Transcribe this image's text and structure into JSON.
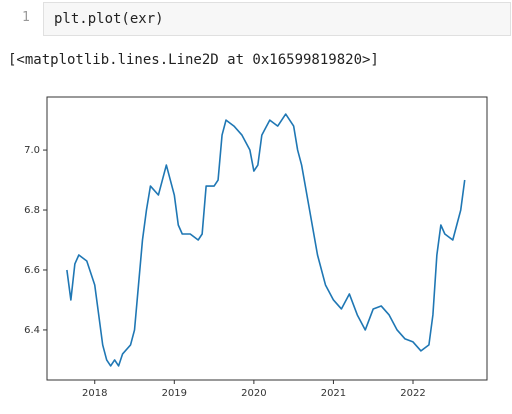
{
  "cell": {
    "line_number": "1",
    "code": "plt.plot(exr)"
  },
  "output": {
    "text": "[<matplotlib.lines.Line2D at 0x16599819820>]"
  },
  "chart_data": {
    "type": "line",
    "x": [
      2017.65,
      2017.7,
      2017.75,
      2017.8,
      2017.9,
      2018.0,
      2018.05,
      2018.1,
      2018.15,
      2018.2,
      2018.25,
      2018.3,
      2018.35,
      2018.45,
      2018.5,
      2018.55,
      2018.6,
      2018.65,
      2018.7,
      2018.8,
      2018.85,
      2018.9,
      2019.0,
      2019.05,
      2019.1,
      2019.2,
      2019.3,
      2019.35,
      2019.4,
      2019.5,
      2019.55,
      2019.6,
      2019.65,
      2019.75,
      2019.85,
      2019.95,
      2020.0,
      2020.05,
      2020.1,
      2020.2,
      2020.3,
      2020.4,
      2020.5,
      2020.55,
      2020.6,
      2020.7,
      2020.8,
      2020.9,
      2021.0,
      2021.1,
      2021.2,
      2021.3,
      2021.4,
      2021.5,
      2021.6,
      2021.7,
      2021.8,
      2021.9,
      2022.0,
      2022.1,
      2022.2,
      2022.25,
      2022.3,
      2022.35,
      2022.4,
      2022.5,
      2022.55,
      2022.6,
      2022.65
    ],
    "series": [
      {
        "color": "#1f77b4",
        "values": [
          6.6,
          6.5,
          6.62,
          6.65,
          6.63,
          6.55,
          6.45,
          6.35,
          6.3,
          6.28,
          6.3,
          6.28,
          6.32,
          6.35,
          6.4,
          6.55,
          6.7,
          6.8,
          6.88,
          6.85,
          6.9,
          6.95,
          6.85,
          6.75,
          6.72,
          6.72,
          6.7,
          6.72,
          6.88,
          6.88,
          6.9,
          7.05,
          7.1,
          7.08,
          7.05,
          7.0,
          6.93,
          6.95,
          7.05,
          7.1,
          7.08,
          7.12,
          7.08,
          7.0,
          6.95,
          6.8,
          6.65,
          6.55,
          6.5,
          6.47,
          6.52,
          6.45,
          6.4,
          6.47,
          6.48,
          6.45,
          6.4,
          6.37,
          6.36,
          6.33,
          6.35,
          6.45,
          6.65,
          6.75,
          6.72,
          6.7,
          6.75,
          6.8,
          6.9
        ]
      }
    ],
    "xlim": [
      2017.4,
      2022.93
    ],
    "xticks": [
      2018,
      2019,
      2020,
      2021,
      2022
    ],
    "ylim": [
      6.233,
      7.177
    ],
    "yticks": [
      6.4,
      6.6,
      6.8,
      {
        "value": 7,
        "label": "7.0"
      }
    ]
  }
}
